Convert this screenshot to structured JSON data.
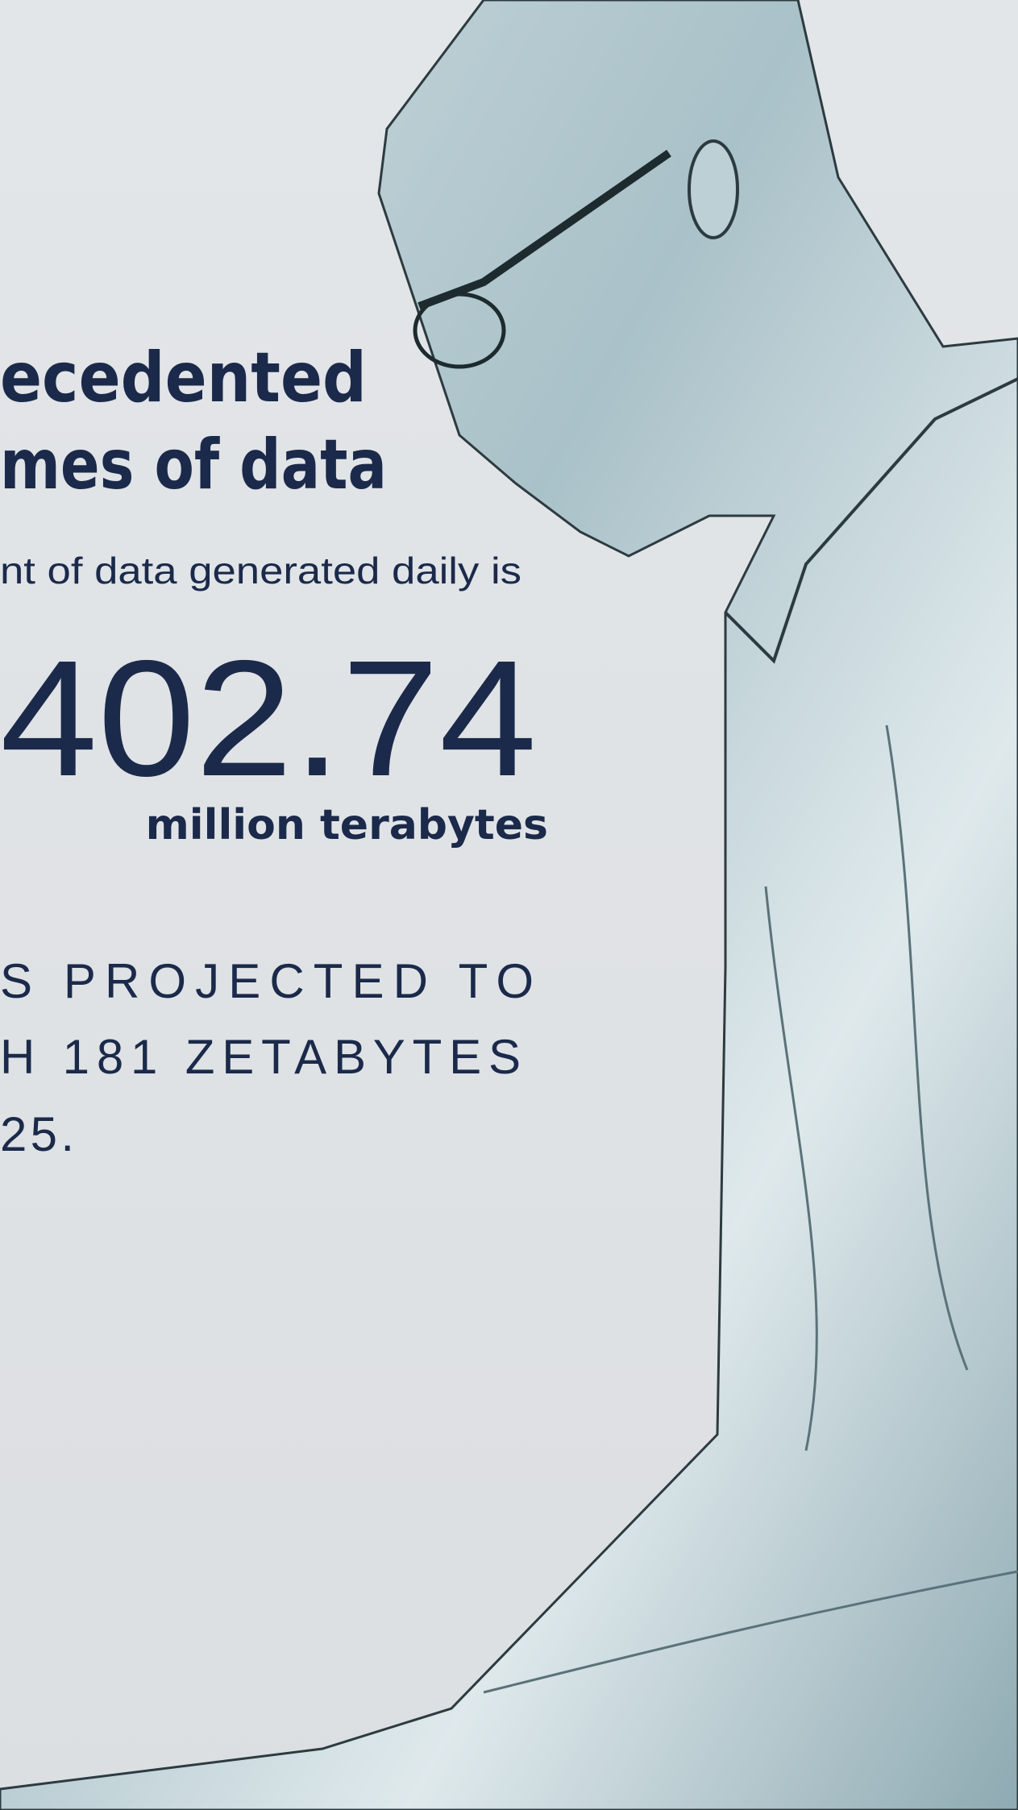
{
  "headline": {
    "lines": [
      "ecedented",
      "mes of data"
    ]
  },
  "subtitle": "nt of data generated daily is",
  "stat": {
    "value": "402.74",
    "unit": "million terabytes"
  },
  "projection": {
    "lines": [
      "S PROJECTED TO",
      "H 181 ZETABYTES",
      "25."
    ]
  }
}
